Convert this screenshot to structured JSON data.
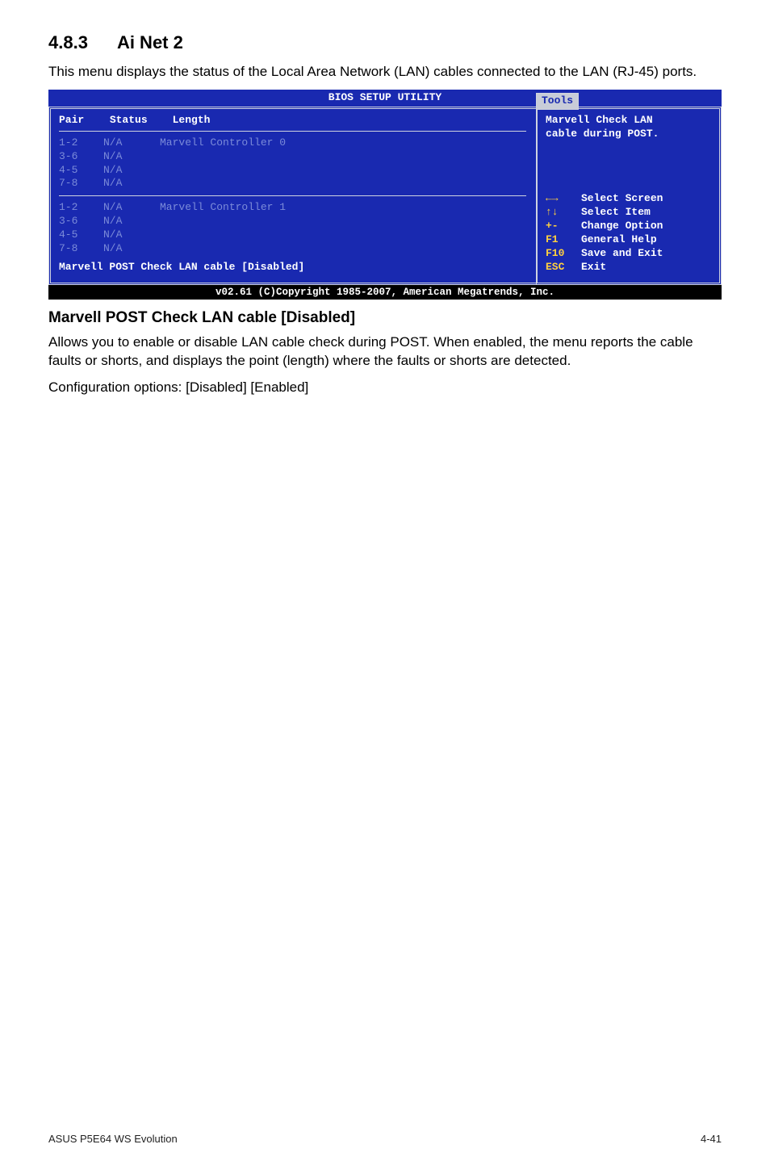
{
  "section": {
    "number": "4.8.3",
    "title": "Ai Net 2",
    "intro": "This menu displays the status of the Local Area Network (LAN) cables connected to the LAN (RJ-45) ports."
  },
  "bios": {
    "header_title": "BIOS SETUP UTILITY",
    "tab_label": "Tools",
    "columns": {
      "pair": "Pair",
      "status": "Status",
      "length": "Length"
    },
    "controllers": [
      {
        "title": "Marvell Controller 0",
        "rows": [
          {
            "pair": "1-2",
            "status": "N/A"
          },
          {
            "pair": "3-6",
            "status": "N/A"
          },
          {
            "pair": "4-5",
            "status": "N/A"
          },
          {
            "pair": "7-8",
            "status": "N/A"
          }
        ]
      },
      {
        "title": "Marvell Controller 1",
        "rows": [
          {
            "pair": "1-2",
            "status": "N/A"
          },
          {
            "pair": "3-6",
            "status": "N/A"
          },
          {
            "pair": "4-5",
            "status": "N/A"
          },
          {
            "pair": "7-8",
            "status": "N/A"
          }
        ]
      }
    ],
    "setting_line": "Marvell POST Check LAN cable [Disabled]",
    "help_top_1": "Marvell Check LAN",
    "help_top_2": "cable during POST.",
    "keys": [
      {
        "key": "←→",
        "label": "Select Screen",
        "cls": "arrow-lr"
      },
      {
        "key": "↑↓",
        "label": "Select Item",
        "cls": "arrow-ud"
      },
      {
        "key": "+-",
        "label": "Change Option"
      },
      {
        "key": "F1",
        "label": "General Help"
      },
      {
        "key": "F10",
        "label": "Save and Exit"
      },
      {
        "key": "ESC",
        "label": "Exit"
      }
    ],
    "footer": "v02.61 (C)Copyright 1985-2007, American Megatrends, Inc."
  },
  "sub": {
    "heading": "Marvell POST Check LAN cable [Disabled]",
    "para": "Allows you to enable or disable LAN cable check during POST. When enabled, the menu reports the cable faults or shorts, and displays the point (length) where the faults or shorts are detected.",
    "options": "Configuration options: [Disabled] [Enabled]"
  },
  "footer": {
    "left": "ASUS P5E64 WS Evolution",
    "right": "4-41"
  }
}
